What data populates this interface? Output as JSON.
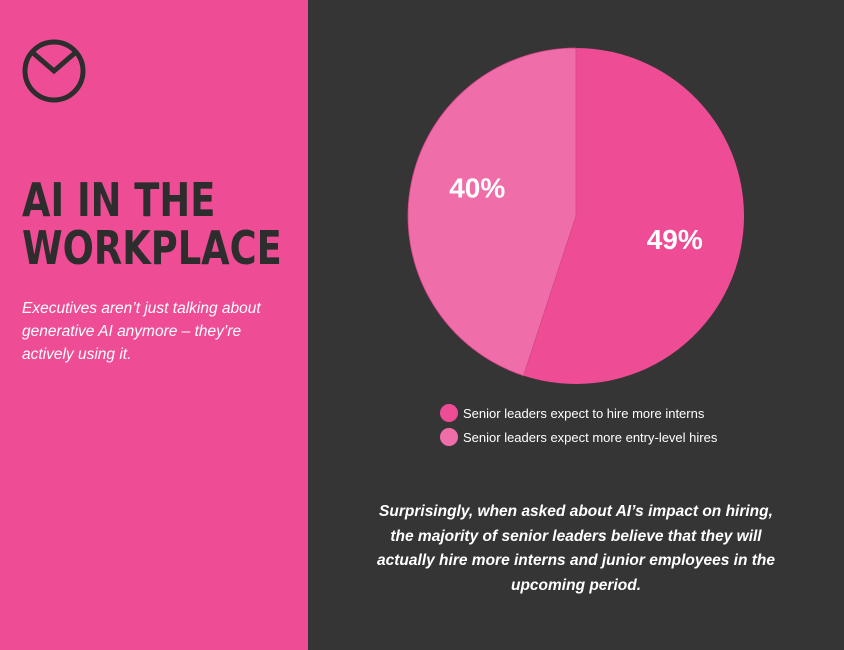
{
  "header": {
    "title_lines": [
      "AI IN THE",
      "WORKPLACE"
    ],
    "subtitle": "Executives aren’t just talking about generative AI anymore – they’re actively using it."
  },
  "logo": {
    "icon": "clock-logo-icon"
  },
  "caption": "Surprisingly, when asked about AI’s impact on hiring, the majority of senior leaders believe that they will actually hire more interns and junior employees in the upcoming period.",
  "colors": {
    "left_panel": "#EE4D95",
    "right_panel": "#363535",
    "series_1": "#EE4D95",
    "series_2": "#EF6DA8",
    "title_text": "#2E2D2D"
  },
  "chart_data": {
    "type": "pie",
    "slices": [
      {
        "label": "Senior leaders expect to hire more interns",
        "value": 49,
        "display": "49%",
        "color": "#EE4D95"
      },
      {
        "label": "Senior leaders expect more entry-level hires",
        "value": 40,
        "display": "40%",
        "color": "#EF6DA8"
      }
    ],
    "legend_position": "bottom",
    "start_angle": "12 o'clock",
    "direction": "clockwise"
  }
}
